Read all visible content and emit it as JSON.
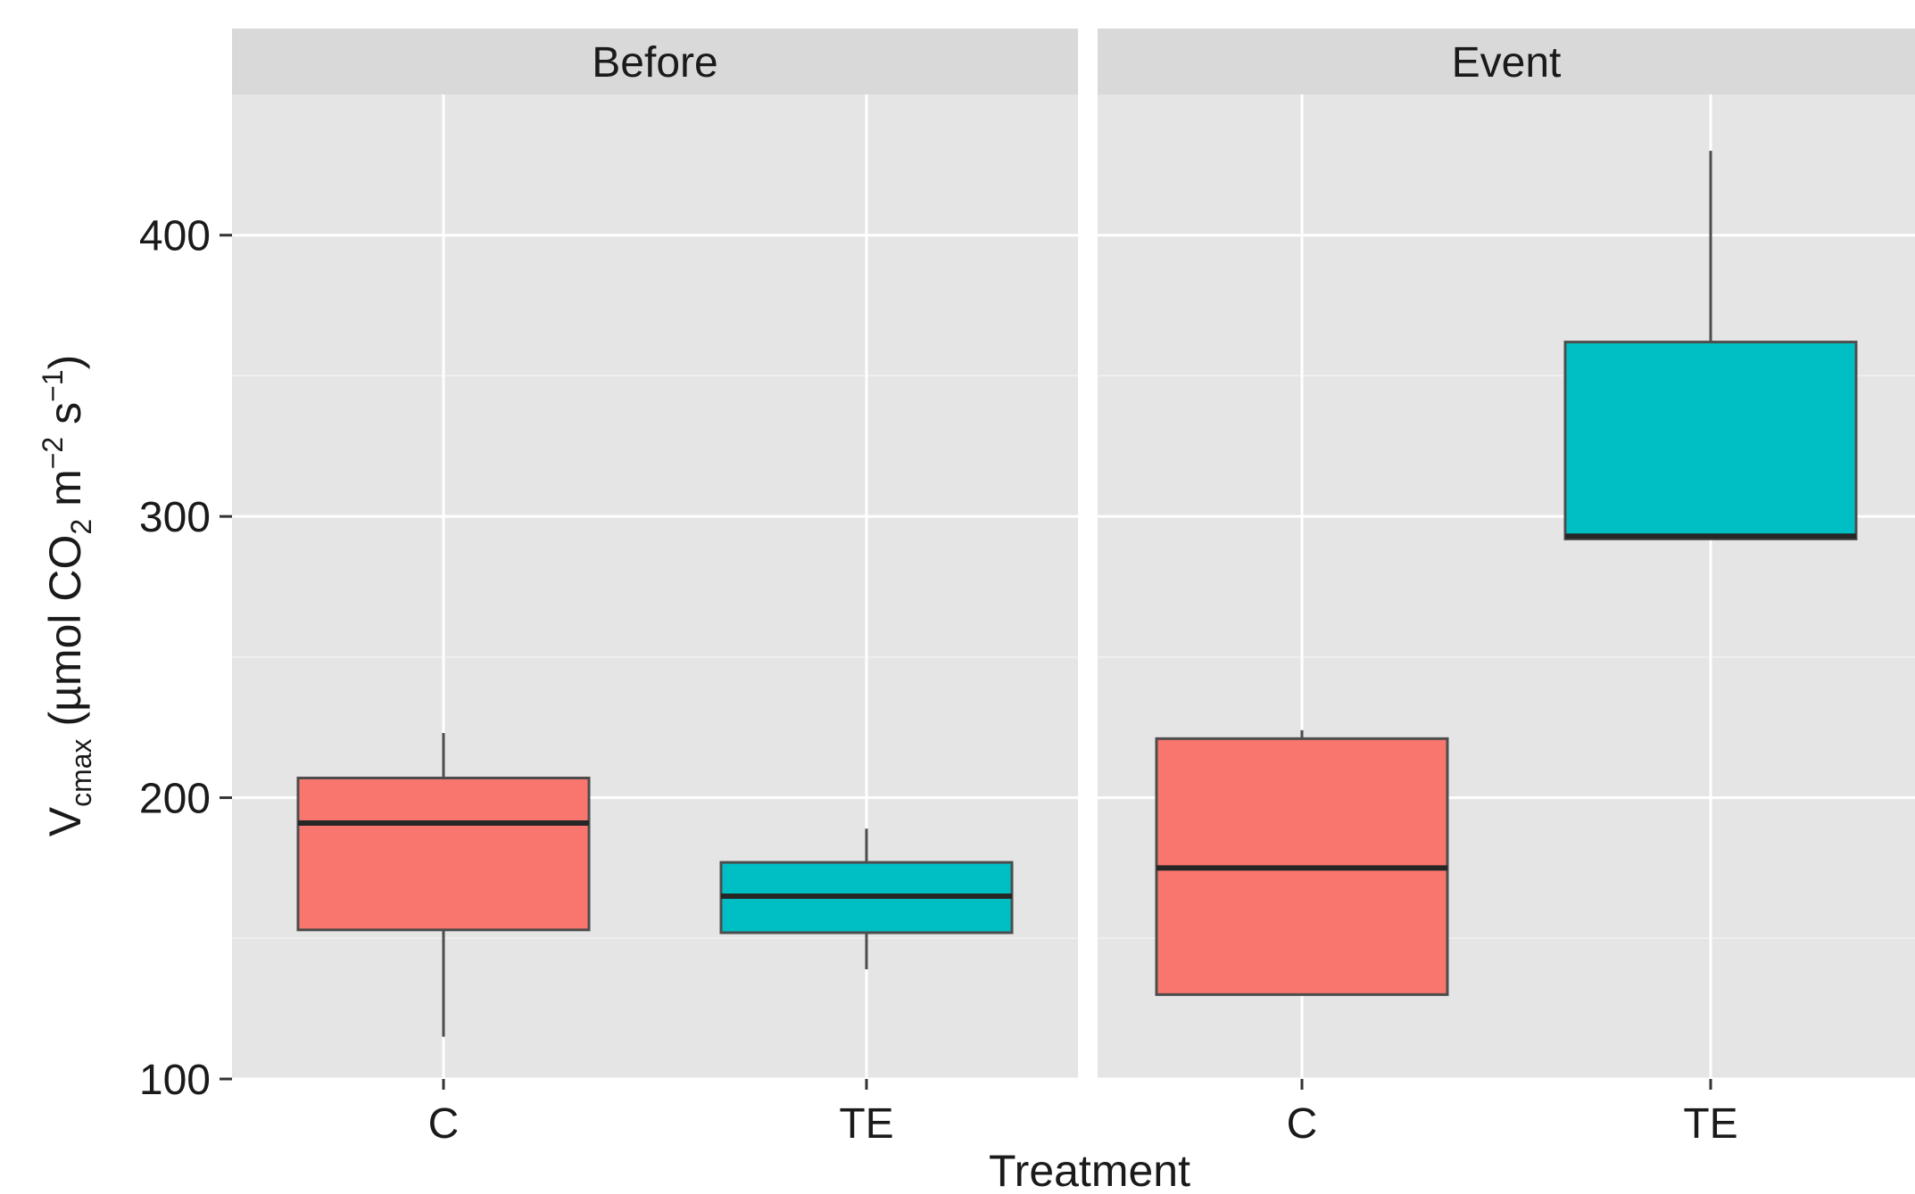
{
  "chart_data": {
    "type": "boxplot",
    "facets": [
      "Before",
      "Event"
    ],
    "categories": [
      "C",
      "TE"
    ],
    "xlabel": "Treatment",
    "ylabel": {
      "base": "V",
      "sub": "cmax",
      "text": " (µmol CO",
      "sub2": "2",
      "mid": " m",
      "sup1": "−2",
      "mid2": " s",
      "sup2": "−1",
      "end": ")"
    },
    "yticks": [
      100,
      200,
      300,
      400
    ],
    "ylim": [
      100,
      450
    ],
    "colors": {
      "C": "#F8766D",
      "TE": "#00BFC4",
      "panel": "#E5E5E5",
      "strip": "#D9D9D9"
    },
    "grid": true,
    "boxes": [
      {
        "facet": "Before",
        "category": "C",
        "min": 115,
        "q1": 153,
        "median": 191,
        "q3": 207,
        "max": 223
      },
      {
        "facet": "Before",
        "category": "TE",
        "min": 139,
        "q1": 152,
        "median": 165,
        "q3": 177,
        "max": 189
      },
      {
        "facet": "Event",
        "category": "C",
        "min": 130,
        "q1": 130,
        "median": 175,
        "q3": 221,
        "max": 224
      },
      {
        "facet": "Event",
        "category": "TE",
        "min": 292,
        "q1": 292,
        "median": 293,
        "q3": 362,
        "max": 430
      }
    ]
  }
}
